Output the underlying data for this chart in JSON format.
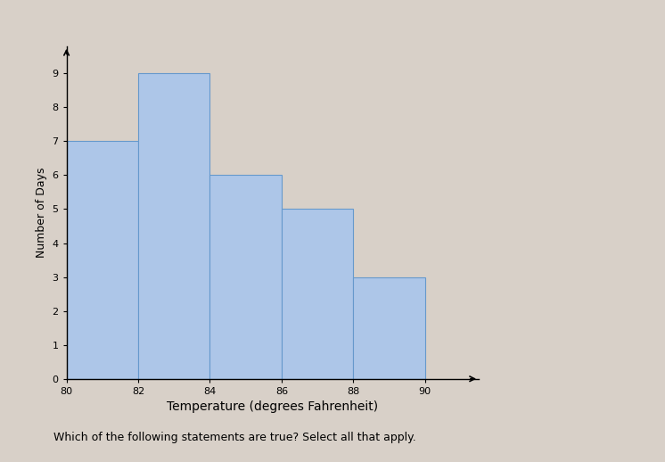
{
  "bin_edges": [
    80,
    82,
    84,
    86,
    88,
    90
  ],
  "frequencies": [
    7,
    9,
    6,
    5,
    3
  ],
  "bar_color": "#adc6e8",
  "bar_edgecolor": "#6699cc",
  "xlabel": "Temperature (degrees Fahrenheit)",
  "ylabel": "Number of Days",
  "xlim": [
    80,
    91.5
  ],
  "ylim": [
    0,
    9.8
  ],
  "yticks": [
    0,
    1,
    2,
    3,
    4,
    5,
    6,
    7,
    8,
    9
  ],
  "xticks": [
    80,
    82,
    84,
    86,
    88,
    90
  ],
  "xlabel_fontsize": 10,
  "ylabel_fontsize": 9,
  "tick_fontsize": 8,
  "background_color": "#d8d0c8",
  "footer_text": "Which of the following statements are true? Select all that apply.",
  "footer_fontsize": 9
}
